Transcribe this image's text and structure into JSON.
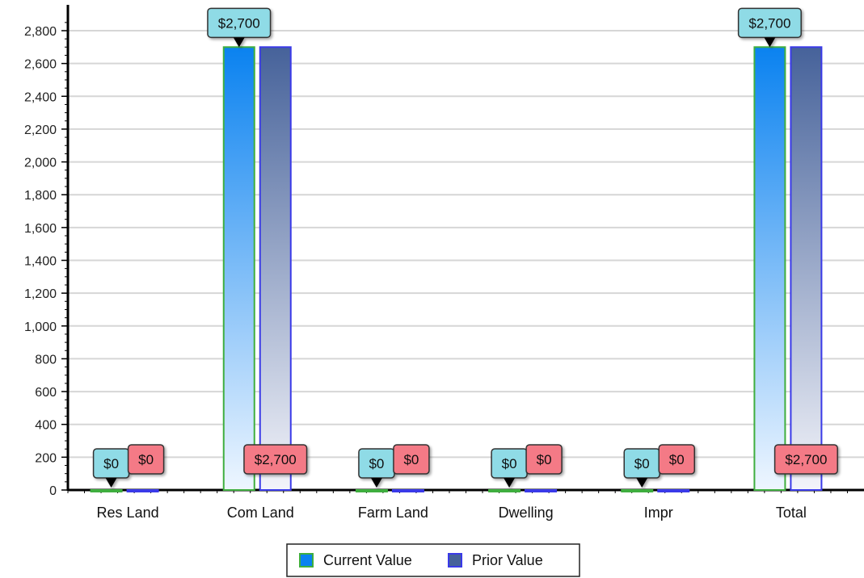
{
  "chart_data": {
    "type": "bar",
    "categories": [
      "Res Land",
      "Com Land",
      "Farm Land",
      "Dwelling",
      "Impr",
      "Total"
    ],
    "series": [
      {
        "name": "Current Value",
        "values": [
          0,
          2700,
          0,
          0,
          0,
          2700
        ],
        "labels": [
          "$0",
          "$2,700",
          "$0",
          "$0",
          "$0",
          "$2,700"
        ],
        "color": "#0a82f0",
        "border": "#3fae3f",
        "label_color": "#8fdbe6"
      },
      {
        "name": "Prior Value",
        "values": [
          0,
          2700,
          0,
          0,
          0,
          2700
        ],
        "labels": [
          "$0",
          "$2,700",
          "$0",
          "$0",
          "$0",
          "$2,700"
        ],
        "color": "#46629a",
        "border": "#3a3ae8",
        "label_color": "#f47a86"
      }
    ],
    "title": "",
    "xlabel": "",
    "ylabel": "",
    "ylim": [
      0,
      2900
    ],
    "yticks": [
      0,
      200,
      400,
      600,
      800,
      1000,
      1200,
      1400,
      1600,
      1800,
      2000,
      2200,
      2400,
      2600,
      2800
    ],
    "ytick_labels": [
      "0",
      "200",
      "400",
      "600",
      "800",
      "1,000",
      "1,200",
      "1,400",
      "1,600",
      "1,800",
      "2,000",
      "2,200",
      "2,400",
      "2,600",
      "2,800"
    ],
    "grid": true,
    "legend": "bottom-center"
  }
}
